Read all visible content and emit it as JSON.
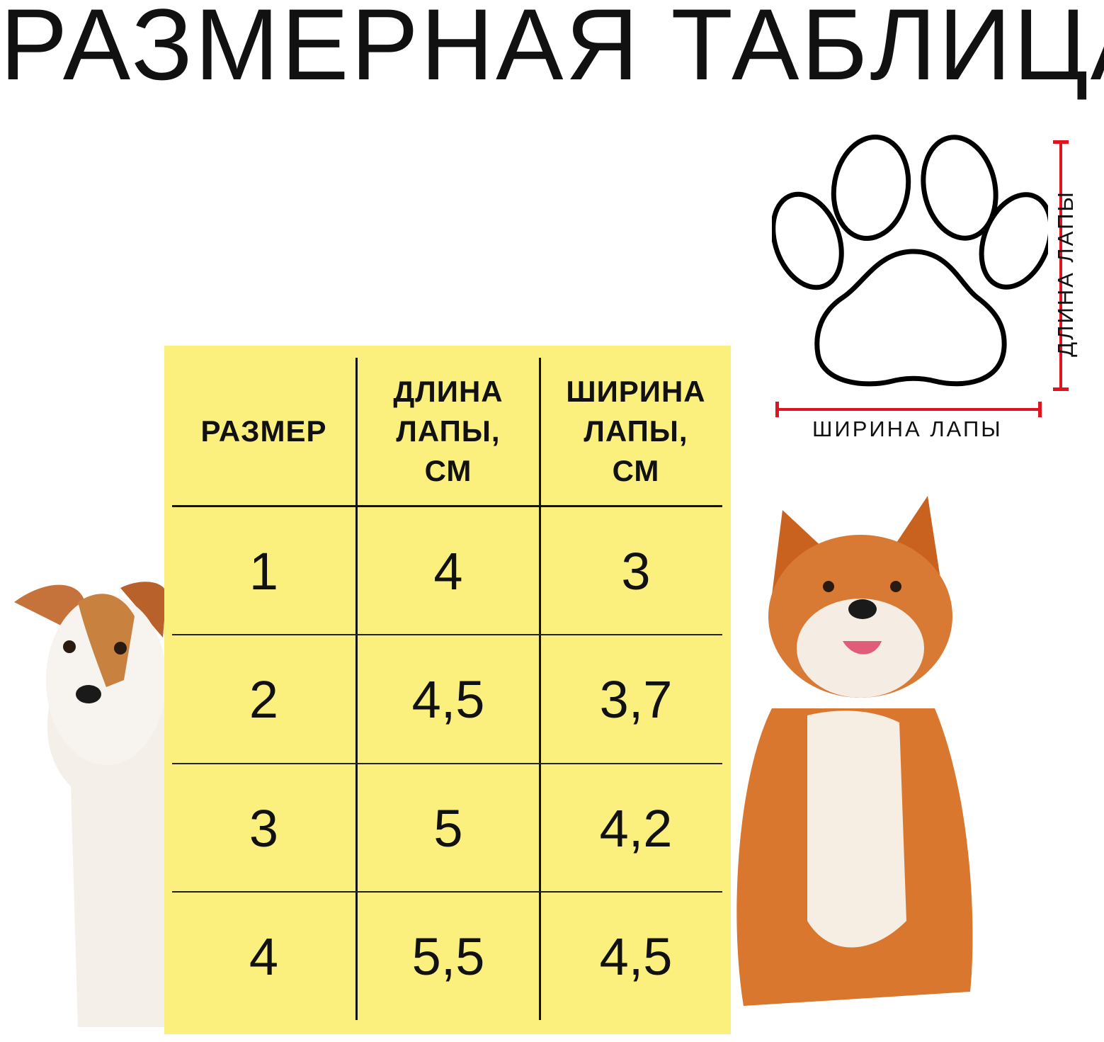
{
  "title": "РАЗМЕРНАЯ ТАБЛИЦА",
  "diagram": {
    "width_label": "ШИРИНА ЛАПЫ",
    "length_label": "ДЛИНА ЛАПЫ",
    "measure_color": "#e0141e"
  },
  "table": {
    "background": "#fbf07e",
    "headers": [
      "РАЗМЕР",
      "ДЛИНА ЛАПЫ, СМ",
      "ШИРИНА ЛАПЫ, СМ"
    ],
    "header_lines": [
      [
        "РАЗМЕР"
      ],
      [
        "ДЛИНА",
        "ЛАПЫ,",
        "СМ"
      ],
      [
        "ШИРИНА",
        "ЛАПЫ,",
        "СМ"
      ]
    ],
    "rows": [
      [
        "1",
        "4",
        "3"
      ],
      [
        "2",
        "4,5",
        "3,7"
      ],
      [
        "3",
        "5",
        "4,2"
      ],
      [
        "4",
        "5,5",
        "4,5"
      ]
    ]
  }
}
